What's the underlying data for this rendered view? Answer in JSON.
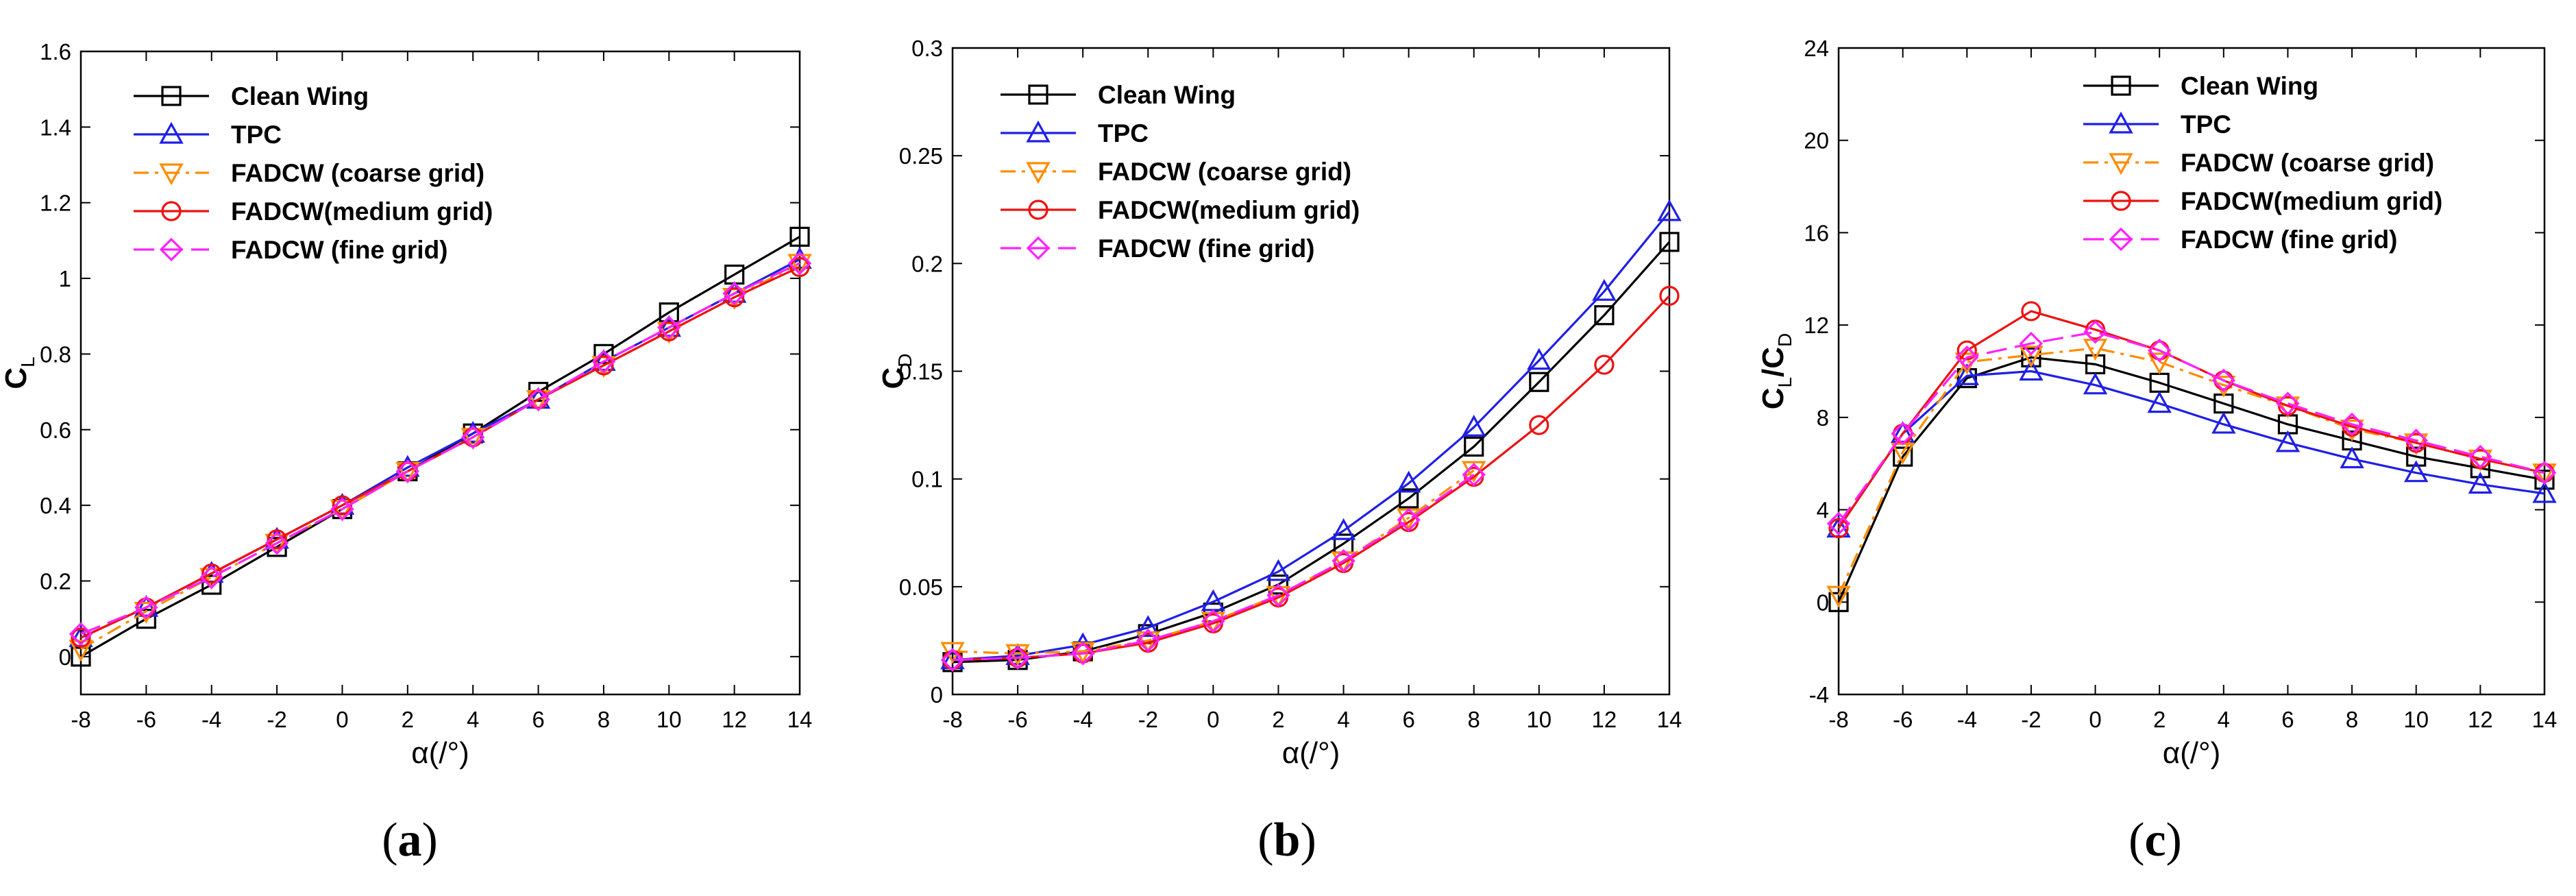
{
  "chart_data": [
    {
      "type": "line",
      "id": "a",
      "caption_letter": "a",
      "xlabel": "α(/°)",
      "ylabel_main": "C",
      "ylabel_sub": "L",
      "xlim": [
        -8,
        14
      ],
      "ylim": [
        -0.1,
        1.6
      ],
      "xticks": [
        -8,
        -6,
        -4,
        -2,
        0,
        2,
        4,
        6,
        8,
        10,
        12,
        14
      ],
      "yticks": [
        0,
        0.2,
        0.4,
        0.6,
        0.8,
        1,
        1.2,
        1.4,
        1.6
      ],
      "legend_position": "top-left",
      "x": [
        -8,
        -6,
        -4,
        -2,
        0,
        2,
        4,
        6,
        8,
        10,
        12,
        14
      ],
      "series": [
        {
          "name": "Clean Wing",
          "color": "#000000",
          "dash": "solid",
          "marker": "square",
          "values": [
            0.0,
            0.1,
            0.19,
            0.29,
            0.39,
            0.49,
            0.59,
            0.7,
            0.8,
            0.91,
            1.01,
            1.11
          ]
        },
        {
          "name": "TPC",
          "color": "#1f1fe6",
          "dash": "solid",
          "marker": "triangle-up",
          "values": [
            0.05,
            0.13,
            0.22,
            0.31,
            0.4,
            0.5,
            0.59,
            0.68,
            0.78,
            0.87,
            0.96,
            1.05
          ]
        },
        {
          "name": "FADCW (coarse grid)",
          "color": "#ff8c00",
          "dash": "dashdot",
          "marker": "triangle-down",
          "values": [
            0.02,
            0.12,
            0.21,
            0.3,
            0.39,
            0.49,
            0.58,
            0.68,
            0.77,
            0.86,
            0.95,
            1.04
          ]
        },
        {
          "name": "FADCW(medium grid)",
          "color": "#ee1111",
          "dash": "solid",
          "marker": "circle",
          "values": [
            0.05,
            0.13,
            0.22,
            0.31,
            0.4,
            0.49,
            0.58,
            0.68,
            0.77,
            0.86,
            0.95,
            1.03
          ]
        },
        {
          "name": "FADCW (fine grid)",
          "color": "#ff22ff",
          "dash": "longdash",
          "marker": "diamond",
          "values": [
            0.06,
            0.13,
            0.21,
            0.3,
            0.39,
            0.49,
            0.58,
            0.68,
            0.78,
            0.87,
            0.96,
            1.04
          ]
        }
      ]
    },
    {
      "type": "line",
      "id": "b",
      "caption_letter": "b",
      "xlabel": "α(/°)",
      "ylabel_main": "C",
      "ylabel_sub": "D",
      "xlim": [
        -8,
        14
      ],
      "ylim": [
        0,
        0.3
      ],
      "xticks": [
        -8,
        -6,
        -4,
        -2,
        0,
        2,
        4,
        6,
        8,
        10,
        12,
        14
      ],
      "yticks": [
        0,
        0.05,
        0.1,
        0.15,
        0.2,
        0.25,
        0.3
      ],
      "legend_position": "top-left",
      "x": [
        -8,
        -6,
        -4,
        -2,
        0,
        2,
        4,
        6,
        8,
        10,
        12,
        14
      ],
      "series": [
        {
          "name": "Clean Wing",
          "color": "#000000",
          "dash": "solid",
          "marker": "square",
          "values": [
            0.015,
            0.016,
            0.02,
            0.028,
            0.038,
            0.051,
            0.07,
            0.091,
            0.115,
            0.145,
            0.176,
            0.21
          ]
        },
        {
          "name": "TPC",
          "color": "#1f1fe6",
          "dash": "solid",
          "marker": "triangle-up",
          "values": [
            0.016,
            0.018,
            0.023,
            0.031,
            0.043,
            0.057,
            0.076,
            0.098,
            0.124,
            0.155,
            0.187,
            0.224
          ]
        },
        {
          "name": "FADCW (coarse grid)",
          "color": "#ff8c00",
          "dash": "dashdot",
          "marker": "triangle-down",
          "values": [
            0.02,
            0.019,
            0.02,
            0.025,
            0.034,
            0.046,
            0.062,
            0.082,
            0.104,
            null,
            null,
            null
          ]
        },
        {
          "name": "FADCW(medium grid)",
          "color": "#ee1111",
          "dash": "solid",
          "marker": "circle",
          "values": [
            0.016,
            0.017,
            0.019,
            0.024,
            0.033,
            0.045,
            0.061,
            0.08,
            0.101,
            0.125,
            0.153,
            0.185
          ]
        },
        {
          "name": "FADCW (fine grid)",
          "color": "#ff22ff",
          "dash": "longdash",
          "marker": "diamond",
          "values": [
            0.016,
            0.017,
            0.019,
            0.025,
            0.034,
            0.046,
            0.062,
            0.081,
            0.102,
            null,
            null,
            null
          ]
        }
      ]
    },
    {
      "type": "line",
      "id": "c",
      "caption_letter": "c",
      "xlabel": "α(/°)",
      "ylabel_main": "C",
      "ylabel_sub": "L",
      "ylabel_mid": "/C",
      "ylabel_sub2": "D",
      "xlim": [
        -8,
        14
      ],
      "ylim": [
        -4,
        24
      ],
      "xticks": [
        -8,
        -6,
        -4,
        -2,
        0,
        2,
        4,
        6,
        8,
        10,
        12,
        14
      ],
      "yticks": [
        -4,
        0,
        4,
        8,
        12,
        16,
        20,
        24
      ],
      "legend_position": "top-center",
      "x": [
        -8,
        -6,
        -4,
        -2,
        0,
        2,
        4,
        6,
        8,
        10,
        12,
        14
      ],
      "series": [
        {
          "name": "Clean Wing",
          "color": "#000000",
          "dash": "solid",
          "marker": "square",
          "values": [
            0.0,
            6.3,
            9.7,
            10.6,
            10.3,
            9.5,
            8.6,
            7.7,
            7.0,
            6.3,
            5.8,
            5.3
          ]
        },
        {
          "name": "TPC",
          "color": "#1f1fe6",
          "dash": "solid",
          "marker": "triangle-up",
          "values": [
            3.2,
            7.3,
            9.8,
            10.0,
            9.4,
            8.6,
            7.7,
            6.9,
            6.2,
            5.6,
            5.1,
            4.7
          ]
        },
        {
          "name": "FADCW (coarse grid)",
          "color": "#ff8c00",
          "dash": "dashdot",
          "marker": "triangle-down",
          "values": [
            0.3,
            6.5,
            10.4,
            10.7,
            11.0,
            10.4,
            9.4,
            8.5,
            7.5,
            6.9,
            6.2,
            5.6
          ]
        },
        {
          "name": "FADCW(medium grid)",
          "color": "#ee1111",
          "dash": "solid",
          "marker": "circle",
          "values": [
            3.2,
            7.3,
            10.9,
            12.6,
            11.8,
            10.9,
            9.6,
            8.5,
            7.6,
            6.9,
            6.2,
            5.6
          ]
        },
        {
          "name": "FADCW (fine grid)",
          "color": "#ff22ff",
          "dash": "longdash",
          "marker": "diamond",
          "values": [
            3.4,
            7.3,
            10.6,
            11.2,
            11.7,
            10.9,
            9.6,
            8.6,
            7.7,
            7.0,
            6.3,
            5.6
          ]
        }
      ]
    }
  ]
}
